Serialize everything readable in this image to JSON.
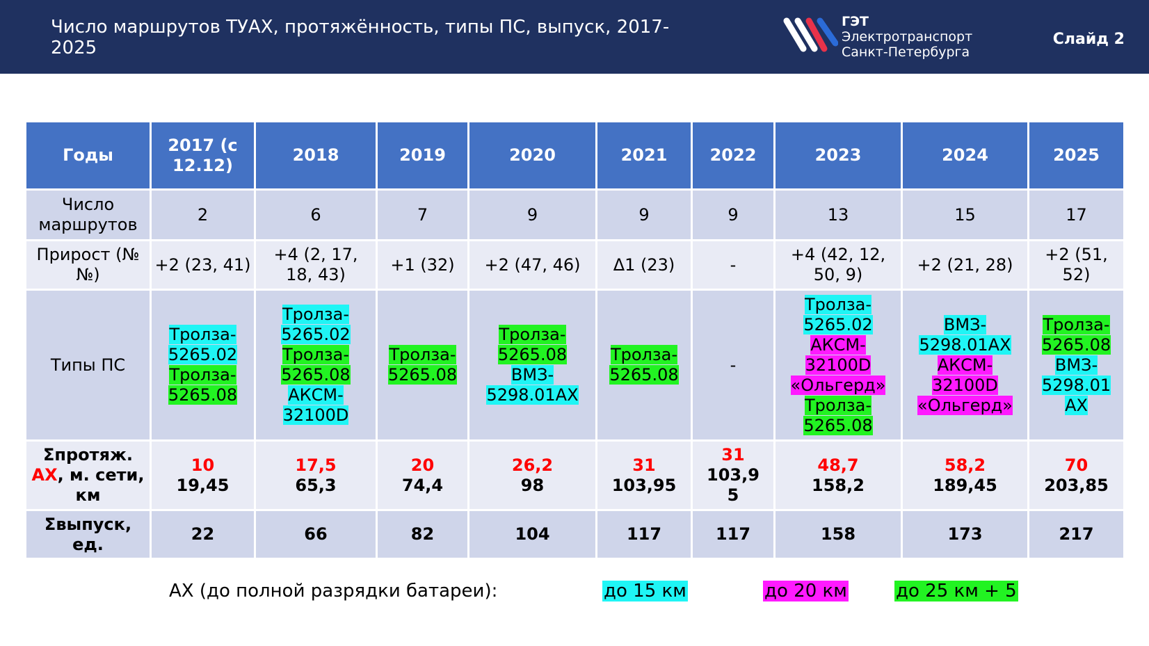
{
  "header": {
    "title": "Число маршрутов ТУАХ, протяжённость, типы ПС, выпуск, 2017-2025",
    "logo": {
      "abbr": "ГЭТ",
      "line1": "Электротранспорт",
      "line2": "Санкт-Петербурга"
    },
    "slide": "Слайд 2"
  },
  "table": {
    "columns": [
      "Годы",
      "2017 (с 12.12)",
      "2018",
      "2019",
      "2020",
      "2021",
      "2022",
      "2023",
      "2024",
      "2025"
    ],
    "routes": {
      "label": "Число маршрутов",
      "values": [
        "2",
        "6",
        "7",
        "9",
        "9",
        "9",
        "13",
        "15",
        "17"
      ]
    },
    "growth": {
      "label": "Прирост (№№)",
      "values": [
        "+2 (23, 41)",
        "+4 (2, 17, 18, 43)",
        "+1 (32)",
        "+2 (47, 46)",
        "Δ1 (23)",
        "-",
        "+4 (42, 12, 50, 9)",
        "+2 (21, 28)",
        "+2 (51, 52)"
      ]
    },
    "types": {
      "label": "Типы ПС",
      "values": [
        [
          {
            "text": "Тролза-\n5265.02",
            "color": "#1ff5f5"
          },
          {
            "text": "Тролза-\n5265.08",
            "color": "#22f322"
          }
        ],
        [
          {
            "text": "Тролза-\n5265.02",
            "color": "#1ff5f5"
          },
          {
            "text": "Тролза-\n5265.08",
            "color": "#22f322"
          },
          {
            "text": "АКСМ-\n32100D",
            "color": "#1ff5f5"
          }
        ],
        [
          {
            "text": "Тролза-\n5265.08",
            "color": "#22f322"
          }
        ],
        [
          {
            "text": "Тролза-\n5265.08",
            "color": "#22f322"
          },
          {
            "text": "ВМЗ-\n5298.01АХ",
            "color": "#1ff5f5"
          }
        ],
        [
          {
            "text": "Тролза-\n5265.08",
            "color": "#22f322"
          }
        ],
        "-",
        [
          {
            "text": "Тролза-\n5265.02",
            "color": "#1ff5f5"
          },
          {
            "text": "АКСМ-\n32100D\n«Ольгерд»",
            "color": "#ff1aff"
          },
          {
            "text": "Тролза-\n5265.08",
            "color": "#22f322"
          }
        ],
        [
          {
            "text": "ВМЗ-\n5298.01АХ",
            "color": "#1ff5f5"
          },
          {
            "text": "АКСМ-\n32100D\n«Ольгерд»",
            "color": "#ff1aff"
          }
        ],
        [
          {
            "text": "Тролза-\n5265.08",
            "color": "#22f322"
          },
          {
            "text": "ВМЗ-\n5298.01\nАХ",
            "color": "#1ff5f5"
          }
        ]
      ]
    },
    "length": {
      "label": [
        "Σпротяж. ",
        "АХ",
        ", м. сети, км"
      ],
      "ax": [
        "10",
        "17,5",
        "20",
        "26,2",
        "31",
        "31",
        "48,7",
        "58,2",
        "70"
      ],
      "total": [
        "19,45",
        "65,3",
        "74,4",
        "98",
        "103,95",
        "103,9\n5",
        "158,2",
        "189,45",
        "203,85"
      ]
    },
    "release": {
      "label": "Σвыпуск, ед.",
      "values": [
        "22",
        "66",
        "82",
        "104",
        "117",
        "117",
        "158",
        "173",
        "217"
      ]
    }
  },
  "legend": {
    "title": "АХ (до полной разрядки батареи):",
    "items": [
      {
        "text": "до 15 км",
        "color": "#1ff5f5"
      },
      {
        "text": "до 20 км",
        "color": "#ff1aff"
      },
      {
        "text": "до 25 км + 5",
        "color": "#22f322"
      }
    ]
  }
}
